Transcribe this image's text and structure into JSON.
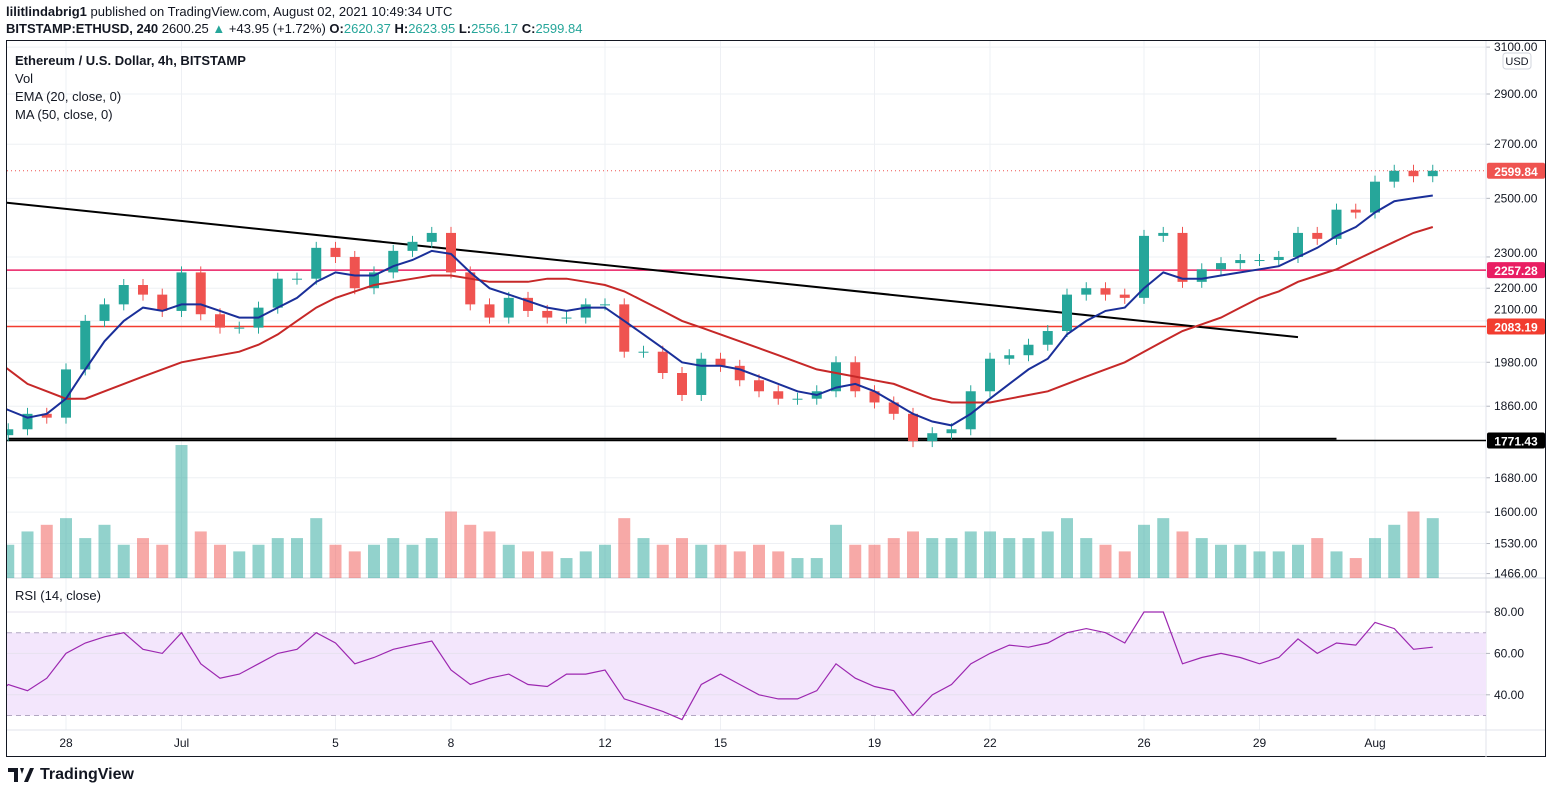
{
  "header": {
    "publisher": "lilitlindabrig1",
    "published_text": "published on TradingView.com, August 02, 2021 10:49:34 UTC",
    "symbol": "BITSTAMP:ETHUSD, 240",
    "last": "2600.25",
    "change": "+43.95 (+1.72%)",
    "o_label": "O:",
    "o": "2620.37",
    "h_label": "H:",
    "h": "2623.95",
    "l_label": "L:",
    "l": "2556.17",
    "c_label": "C:",
    "c": "2599.84"
  },
  "legend": {
    "title": "Ethereum / U.S. Dollar, 4h, BITSTAMP",
    "vol": "Vol",
    "ema": "EMA (20, close, 0)",
    "ma": "MA (50, close, 0)",
    "rsi": "RSI (14, close)"
  },
  "currency_badge": "USD",
  "footer": {
    "logo": "TradingView"
  },
  "colors": {
    "up": "#26a69a",
    "down": "#ef5350",
    "ema": "#1a2f99",
    "ma": "#c62828",
    "rsi": "#9c27b0",
    "rsi_band": "#f3e6fc",
    "level_pink": "#e91e63",
    "level_red": "#f23c2f",
    "trend": "#000000"
  },
  "chart_data": {
    "type": "candlestick",
    "price_scale": "log",
    "grid": true,
    "x_ticks": [
      {
        "label": "28",
        "t": "2021-06-28T00:00"
      },
      {
        "label": "Jul",
        "t": "2021-07-01T00:00"
      },
      {
        "label": "5",
        "t": "2021-07-05T00:00"
      },
      {
        "label": "8",
        "t": "2021-07-08T00:00"
      },
      {
        "label": "12",
        "t": "2021-07-12T00:00"
      },
      {
        "label": "15",
        "t": "2021-07-15T00:00"
      },
      {
        "label": "19",
        "t": "2021-07-19T00:00"
      },
      {
        "label": "22",
        "t": "2021-07-22T00:00"
      },
      {
        "label": "26",
        "t": "2021-07-26T00:00"
      },
      {
        "label": "29",
        "t": "2021-07-29T00:00"
      },
      {
        "label": "Aug",
        "t": "2021-08-01T00:00"
      }
    ],
    "y_ticks": [
      3100,
      2900,
      2700,
      2500,
      2300,
      2200,
      2100,
      1980,
      1860,
      1680,
      1600,
      1530,
      1466
    ],
    "rsi_ticks": [
      80,
      60,
      40
    ],
    "rsi_band": [
      30,
      70
    ],
    "columns": [
      "t",
      "close",
      "ema20",
      "ma50",
      "rsi",
      "volume"
    ],
    "start": "2021-06-26T00:00",
    "interval_hours": 12,
    "close": [
      1785,
      1800,
      1840,
      1830,
      1960,
      2100,
      2150,
      2210,
      2180,
      2130,
      2250,
      2120,
      2080,
      2080,
      2140,
      2230,
      2230,
      2330,
      2300,
      2200,
      2250,
      2320,
      2350,
      2380,
      2250,
      2150,
      2110,
      2170,
      2130,
      2110,
      2110,
      2150,
      2150,
      2010,
      2010,
      1950,
      1890,
      1990,
      1970,
      1930,
      1900,
      1880,
      1880,
      1900,
      1980,
      1900,
      1870,
      1840,
      1770,
      1790,
      1800,
      1900,
      1990,
      2000,
      2030,
      2070,
      2180,
      2200,
      2180,
      2170,
      2370,
      2380,
      2220,
      2260,
      2280,
      2290,
      2290,
      2300,
      2380,
      2360,
      2460,
      2450,
      2560,
      2600,
      2580,
      2600
    ],
    "ema20": [
      1870,
      1850,
      1830,
      1840,
      1880,
      1960,
      2040,
      2100,
      2140,
      2130,
      2150,
      2150,
      2130,
      2110,
      2110,
      2140,
      2170,
      2220,
      2250,
      2240,
      2240,
      2270,
      2290,
      2320,
      2310,
      2250,
      2200,
      2180,
      2160,
      2140,
      2130,
      2140,
      2140,
      2100,
      2060,
      2020,
      1980,
      1970,
      1970,
      1960,
      1940,
      1920,
      1900,
      1890,
      1910,
      1920,
      1900,
      1870,
      1840,
      1820,
      1810,
      1840,
      1880,
      1920,
      1960,
      1990,
      2060,
      2100,
      2130,
      2140,
      2200,
      2250,
      2230,
      2230,
      2240,
      2250,
      2260,
      2270,
      2300,
      2330,
      2370,
      2400,
      2450,
      2490,
      2500,
      2510
    ],
    "ma50": [
      2000,
      1960,
      1920,
      1900,
      1880,
      1880,
      1900,
      1920,
      1940,
      1960,
      1980,
      1990,
      2000,
      2010,
      2030,
      2060,
      2100,
      2140,
      2170,
      2190,
      2210,
      2220,
      2230,
      2240,
      2240,
      2230,
      2220,
      2220,
      2220,
      2230,
      2230,
      2220,
      2210,
      2190,
      2160,
      2130,
      2100,
      2080,
      2060,
      2040,
      2020,
      2000,
      1980,
      1960,
      1950,
      1940,
      1930,
      1920,
      1900,
      1880,
      1870,
      1870,
      1870,
      1880,
      1890,
      1900,
      1920,
      1940,
      1960,
      1980,
      2010,
      2040,
      2070,
      2090,
      2110,
      2140,
      2170,
      2190,
      2220,
      2240,
      2260,
      2290,
      2320,
      2350,
      2380,
      2400
    ],
    "rsi": [
      37,
      45,
      42,
      48,
      60,
      65,
      68,
      70,
      62,
      60,
      70,
      55,
      48,
      50,
      55,
      60,
      62,
      70,
      65,
      55,
      58,
      62,
      64,
      66,
      52,
      45,
      48,
      50,
      45,
      44,
      50,
      50,
      52,
      38,
      35,
      32,
      28,
      45,
      50,
      45,
      40,
      38,
      38,
      42,
      55,
      48,
      44,
      42,
      30,
      40,
      45,
      55,
      60,
      64,
      63,
      65,
      70,
      72,
      70,
      65,
      80,
      80,
      55,
      58,
      60,
      58,
      55,
      58,
      67,
      60,
      65,
      64,
      75,
      72,
      62,
      63
    ],
    "volume": [
      30,
      25,
      35,
      40,
      45,
      30,
      40,
      25,
      30,
      25,
      100,
      35,
      25,
      20,
      25,
      30,
      30,
      45,
      25,
      20,
      25,
      30,
      25,
      30,
      50,
      40,
      35,
      25,
      20,
      20,
      15,
      20,
      25,
      45,
      30,
      25,
      30,
      25,
      25,
      20,
      25,
      20,
      15,
      15,
      40,
      25,
      25,
      30,
      35,
      30,
      30,
      35,
      35,
      30,
      30,
      35,
      45,
      30,
      25,
      20,
      40,
      45,
      35,
      30,
      25,
      25,
      20,
      20,
      25,
      30,
      20,
      15,
      30,
      40,
      50,
      45
    ],
    "levels": [
      {
        "price": 2257.28,
        "label": "2257.28",
        "color": "#e91e63"
      },
      {
        "price": 2083.19,
        "label": "2083.19",
        "color": "#f23c2f"
      },
      {
        "price": 1771.43,
        "label": "1771.43",
        "color": "#000000"
      }
    ],
    "last_price": {
      "price": 2599.84,
      "label": "2599.84",
      "color": "#ef5350"
    },
    "trendlines": [
      {
        "from": {
          "t": "2021-06-26T10:00",
          "price": 2485
        },
        "to": {
          "t": "2021-07-30T00:00",
          "price": 2052
        }
      },
      {
        "from": {
          "t": "2021-06-26T12:00",
          "price": 1776
        },
        "to": {
          "t": "2021-07-31T00:00",
          "price": 1776
        }
      }
    ]
  }
}
